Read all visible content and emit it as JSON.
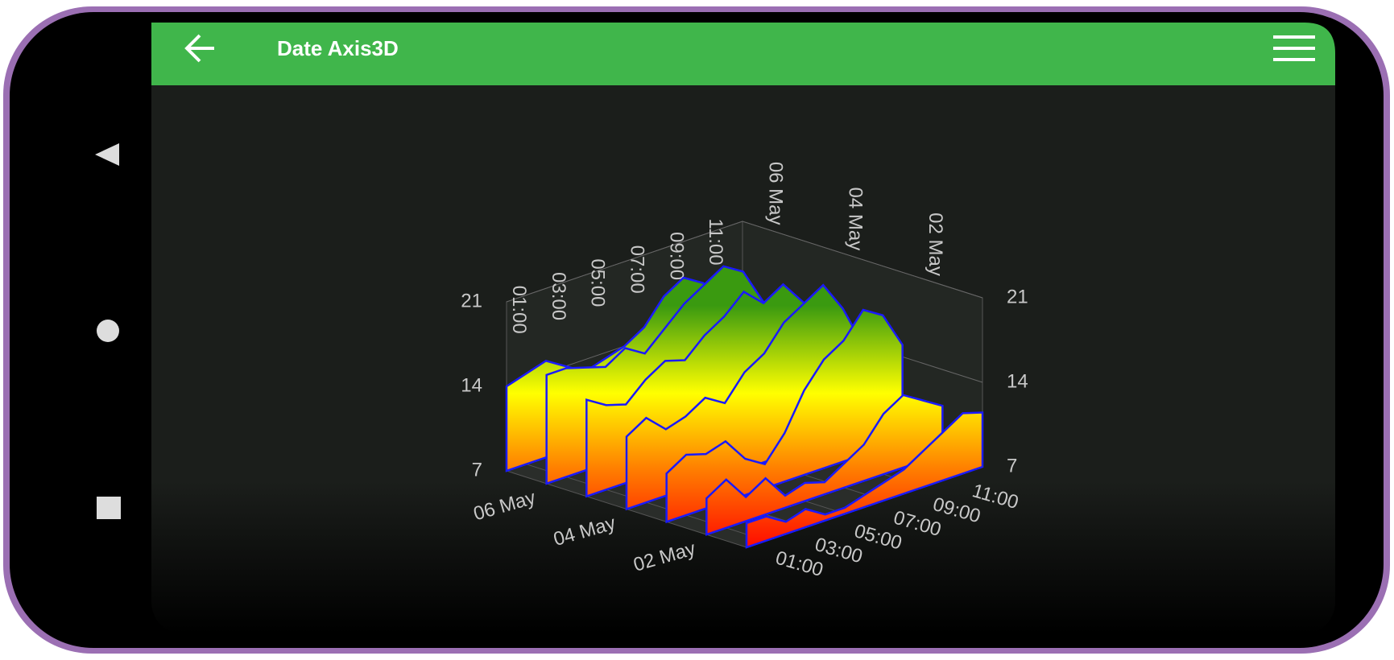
{
  "app": {
    "title": "Date Axis3D"
  },
  "chart_data": {
    "type": "area3d",
    "x": [
      0,
      1,
      2,
      3,
      4,
      5,
      6,
      7,
      8,
      9,
      10,
      11,
      12
    ],
    "xlim": [
      0,
      12
    ],
    "xticks": [
      {
        "value": 1,
        "label": "01:00"
      },
      {
        "value": 3,
        "label": "03:00"
      },
      {
        "value": 5,
        "label": "05:00"
      },
      {
        "value": 7,
        "label": "07:00"
      },
      {
        "value": 9,
        "label": "09:00"
      },
      {
        "value": 11,
        "label": "11:00"
      }
    ],
    "zlim": [
      1,
      7
    ],
    "zticks": [
      {
        "value": 2,
        "label": "02 May"
      },
      {
        "value": 4,
        "label": "04 May"
      },
      {
        "value": 6,
        "label": "06 May"
      }
    ],
    "ylim": [
      7,
      21
    ],
    "yticks": [
      7,
      14,
      21
    ],
    "series": [
      {
        "z": 7,
        "values": [
          14,
          14.5,
          15,
          14,
          13,
          13.5,
          14,
          15,
          17,
          18,
          17,
          15,
          14
        ]
      },
      {
        "z": 6,
        "values": [
          16,
          16,
          15.5,
          15,
          16,
          15,
          16.5,
          18,
          19,
          20,
          19,
          16,
          14
        ]
      },
      {
        "z": 5,
        "values": [
          15,
          14,
          13.5,
          15,
          16,
          15.5,
          17,
          18,
          19.5,
          18,
          19,
          17,
          15
        ]
      },
      {
        "z": 4,
        "values": [
          13,
          14,
          12.5,
          13,
          14,
          13,
          15,
          16,
          18,
          19,
          20,
          17.5,
          14
        ]
      },
      {
        "z": 3,
        "values": [
          11,
          12,
          11.5,
          12,
          10,
          9,
          11,
          14,
          16,
          17,
          19,
          18,
          15
        ]
      },
      {
        "z": 2,
        "values": [
          10,
          11,
          9,
          10,
          8,
          8.5,
          8,
          9,
          10,
          12,
          13,
          12,
          11
        ]
      },
      {
        "z": 1,
        "values": [
          9,
          9,
          8,
          8.5,
          7.5,
          7.5,
          8,
          8.5,
          9,
          10,
          11,
          12,
          11.5
        ]
      }
    ]
  }
}
